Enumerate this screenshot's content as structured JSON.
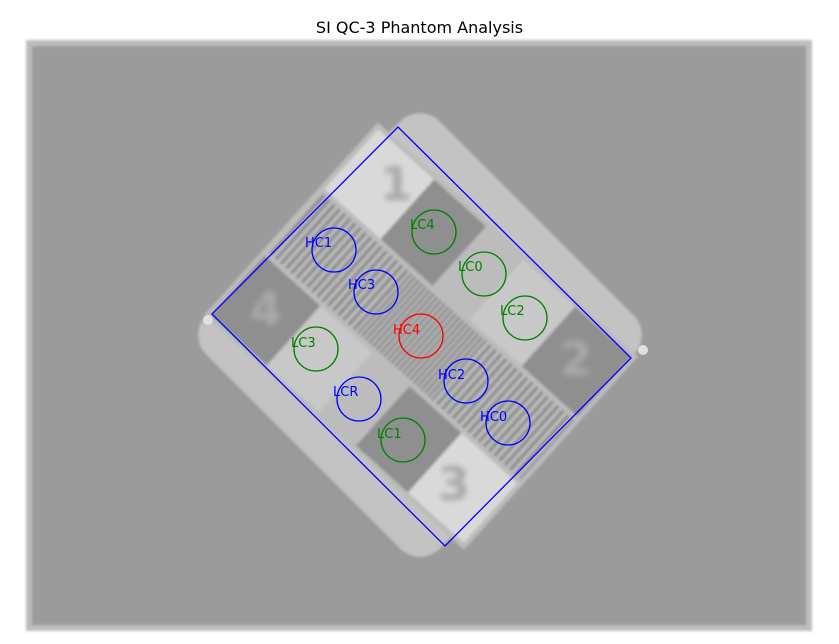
{
  "title": "SI QC-3 Phantom Analysis",
  "colors": {
    "high_contrast": "#0000ff",
    "low_contrast": "#008000",
    "highlight": "#ff0000",
    "outline": "#0000ff"
  },
  "quadrant_numbers": [
    "1",
    "2",
    "3",
    "4"
  ],
  "rois": [
    {
      "label": "LC4",
      "group": "low_contrast"
    },
    {
      "label": "HC1",
      "group": "high_contrast"
    },
    {
      "label": "LC0",
      "group": "low_contrast"
    },
    {
      "label": "HC3",
      "group": "high_contrast"
    },
    {
      "label": "LC2",
      "group": "low_contrast"
    },
    {
      "label": "HC4",
      "group": "highlight"
    },
    {
      "label": "LC3",
      "group": "low_contrast"
    },
    {
      "label": "HC2",
      "group": "high_contrast"
    },
    {
      "label": "LCR",
      "group": "high_contrast"
    },
    {
      "label": "HC0",
      "group": "high_contrast"
    },
    {
      "label": "LC1",
      "group": "low_contrast"
    }
  ]
}
